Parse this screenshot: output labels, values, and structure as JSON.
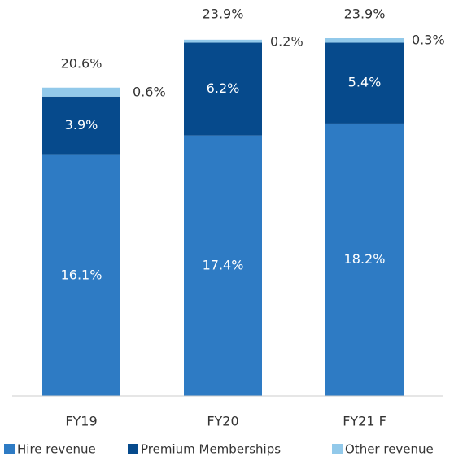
{
  "chart_data": {
    "type": "stacked_bar",
    "categories": [
      "FY19",
      "FY20",
      "FY21 F"
    ],
    "series": [
      {
        "name": "Hire revenue",
        "color": "#2e7bc4",
        "values": [
          16.1,
          17.4,
          18.2
        ],
        "value_labels": [
          "16.1%",
          "17.4%",
          "18.2%"
        ]
      },
      {
        "name": "Premium Memberships",
        "color": "#064a8c",
        "values": [
          3.9,
          6.2,
          5.4
        ],
        "value_labels": [
          "3.9%",
          "6.2%",
          "5.4%"
        ]
      },
      {
        "name": "Other revenue",
        "color": "#92c9ea",
        "values": [
          0.6,
          0.2,
          0.3
        ],
        "value_labels": [
          "0.6%",
          "0.2%",
          "0.3%"
        ]
      }
    ],
    "totals": [
      20.6,
      23.9,
      23.9
    ],
    "total_labels": [
      "20.6%",
      "23.9%",
      "23.9%"
    ],
    "ylim": [
      0,
      23.9
    ],
    "legend": "bottom"
  }
}
